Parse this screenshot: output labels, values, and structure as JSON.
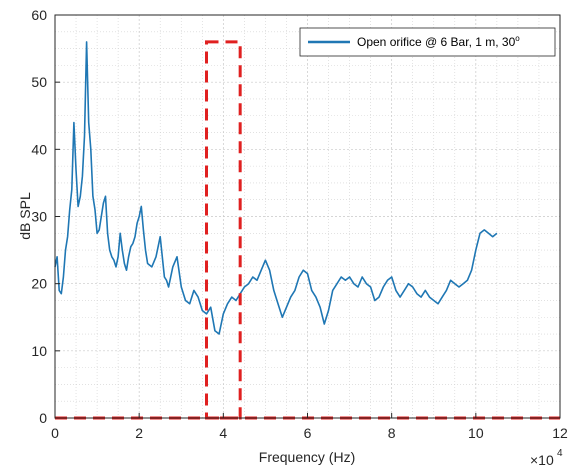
{
  "chart_data": {
    "type": "line",
    "xlabel": "Frequency (Hz)",
    "ylabel": "dB SPL",
    "x_exponent_label": "×10",
    "x_exponent_power": "4",
    "xlim": [
      0,
      12
    ],
    "ylim": [
      0,
      60
    ],
    "x_ticks": [
      "0",
      "2",
      "4",
      "6",
      "8",
      "10",
      "12"
    ],
    "y_ticks": [
      "0",
      "10",
      "20",
      "30",
      "40",
      "50",
      "60"
    ],
    "grid": true,
    "minor_grid": true,
    "legend_position": "top-right",
    "colors": {
      "series": "#1f77b4",
      "annotation": "#e02020",
      "grid": "#d0d0d0",
      "axis": "#262626"
    },
    "series": [
      {
        "name": "Open orifice @ 6 Bar, 1 m, 30",
        "name_superscript": "o",
        "x": [
          0.0,
          0.05,
          0.1,
          0.15,
          0.2,
          0.25,
          0.3,
          0.35,
          0.4,
          0.45,
          0.5,
          0.55,
          0.6,
          0.65,
          0.7,
          0.75,
          0.8,
          0.85,
          0.9,
          0.95,
          1.0,
          1.05,
          1.1,
          1.15,
          1.2,
          1.25,
          1.3,
          1.35,
          1.4,
          1.45,
          1.5,
          1.55,
          1.6,
          1.65,
          1.7,
          1.75,
          1.8,
          1.85,
          1.9,
          1.95,
          2.0,
          2.05,
          2.1,
          2.15,
          2.2,
          2.3,
          2.4,
          2.5,
          2.6,
          2.65,
          2.7,
          2.8,
          2.9,
          3.0,
          3.05,
          3.1,
          3.2,
          3.3,
          3.4,
          3.5,
          3.6,
          3.7,
          3.8,
          3.9,
          4.0,
          4.1,
          4.2,
          4.3,
          4.4,
          4.5,
          4.6,
          4.7,
          4.8,
          4.9,
          5.0,
          5.1,
          5.2,
          5.3,
          5.4,
          5.5,
          5.6,
          5.7,
          5.8,
          5.9,
          6.0,
          6.1,
          6.2,
          6.3,
          6.4,
          6.5,
          6.6,
          6.7,
          6.8,
          6.9,
          7.0,
          7.1,
          7.2,
          7.3,
          7.4,
          7.5,
          7.6,
          7.7,
          7.8,
          7.9,
          8.0,
          8.1,
          8.2,
          8.3,
          8.4,
          8.5,
          8.6,
          8.7,
          8.8,
          8.9,
          9.0,
          9.1,
          9.2,
          9.3,
          9.4,
          9.5,
          9.6,
          9.7,
          9.8,
          9.9,
          10.0,
          10.1,
          10.2,
          10.3,
          10.4,
          10.5
        ],
        "values": [
          22.5,
          24.0,
          19.0,
          18.5,
          21.0,
          25.0,
          27.0,
          31.0,
          34.0,
          44.0,
          37.0,
          31.5,
          33.0,
          36.0,
          42.0,
          56.0,
          44.0,
          40.0,
          33.0,
          31.0,
          27.5,
          28.0,
          30.0,
          32.0,
          33.0,
          27.5,
          25.0,
          24.0,
          23.5,
          22.5,
          24.0,
          27.5,
          25.0,
          23.0,
          22.0,
          24.0,
          25.5,
          26.0,
          27.0,
          29.0,
          30.0,
          31.5,
          28.0,
          25.0,
          23.0,
          22.5,
          24.0,
          27.0,
          21.0,
          20.5,
          19.5,
          22.5,
          24.0,
          19.5,
          18.5,
          17.5,
          17.0,
          19.0,
          18.0,
          16.0,
          15.5,
          16.5,
          13.0,
          12.5,
          15.5,
          17.0,
          18.0,
          17.5,
          18.5,
          19.5,
          20.0,
          21.0,
          20.5,
          22.0,
          23.5,
          22.0,
          19.0,
          17.0,
          15.0,
          16.5,
          18.0,
          19.0,
          21.0,
          22.0,
          21.5,
          19.0,
          18.0,
          16.5,
          14.0,
          16.0,
          19.0,
          20.0,
          21.0,
          20.5,
          21.0,
          20.0,
          19.5,
          21.0,
          20.0,
          19.5,
          17.5,
          18.0,
          19.5,
          20.5,
          21.0,
          19.0,
          18.0,
          19.0,
          20.0,
          19.5,
          18.5,
          18.0,
          19.0,
          18.0,
          17.5,
          17.0,
          18.0,
          19.0,
          20.5,
          20.0,
          19.5,
          20.0,
          20.5,
          22.0,
          25.0,
          27.5,
          28.0,
          27.5,
          27.0,
          27.5
        ]
      }
    ],
    "annotation_rect": {
      "x0": 3.6,
      "x1": 4.4,
      "y0": 0,
      "y1": 56
    },
    "annotation_baseline": {
      "x0": 0,
      "x1": 12,
      "y": 0
    }
  }
}
